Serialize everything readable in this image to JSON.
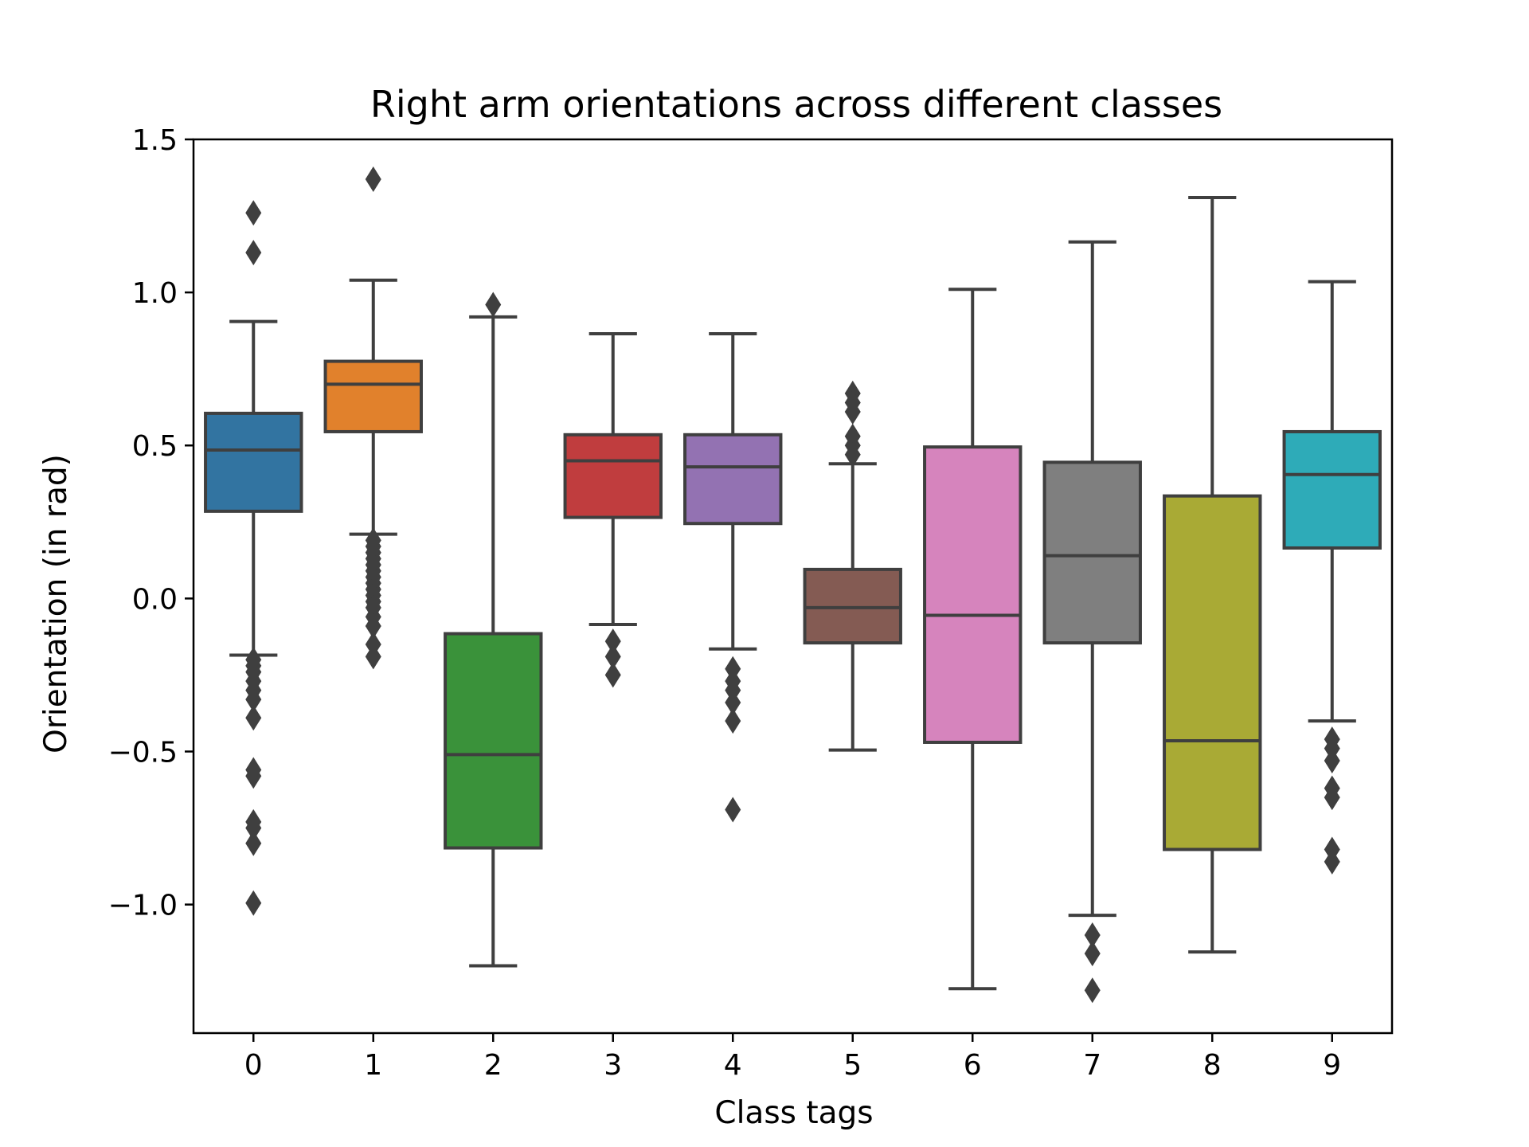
{
  "chart_data": {
    "type": "box",
    "title": "Right arm orientations across different classes",
    "xlabel": "Class tags",
    "ylabel": "Orientation (in rad)",
    "ylim": [
      -1.42,
      1.5
    ],
    "yticks": [
      1.5,
      1.0,
      0.5,
      0.0,
      -0.5,
      -1.0
    ],
    "ytick_labels": [
      "1.5",
      "1.0",
      "0.5",
      "0.0",
      "−0.5",
      "−1.0"
    ],
    "grid": false,
    "legend": "none",
    "categories": [
      "0",
      "1",
      "2",
      "3",
      "4",
      "5",
      "6",
      "7",
      "8",
      "9"
    ],
    "boxes": [
      {
        "category": "0",
        "color": "#3274a1",
        "whisker_low": -0.185,
        "q1": 0.285,
        "median": 0.485,
        "q3": 0.605,
        "whisker_high": 0.905,
        "outliers": [
          1.26,
          1.13,
          -0.2,
          -0.22,
          -0.24,
          -0.27,
          -0.3,
          -0.33,
          -0.39,
          -0.56,
          -0.58,
          -0.73,
          -0.75,
          -0.8,
          -0.995
        ]
      },
      {
        "category": "1",
        "color": "#e1812c",
        "whisker_low": 0.21,
        "q1": 0.545,
        "median": 0.7,
        "q3": 0.775,
        "whisker_high": 1.04,
        "outliers": [
          1.37,
          0.19,
          0.17,
          0.15,
          0.13,
          0.11,
          0.09,
          0.07,
          0.05,
          0.03,
          0.01,
          -0.01,
          -0.03,
          -0.06,
          -0.09,
          -0.15,
          -0.19
        ]
      },
      {
        "category": "2",
        "color": "#3a923a",
        "whisker_low": -1.2,
        "q1": -0.815,
        "median": -0.51,
        "q3": -0.115,
        "whisker_high": 0.92,
        "outliers": [
          0.96
        ]
      },
      {
        "category": "3",
        "color": "#c03d3e",
        "whisker_low": -0.085,
        "q1": 0.265,
        "median": 0.45,
        "q3": 0.535,
        "whisker_high": 0.865,
        "outliers": [
          -0.14,
          -0.19,
          -0.25
        ]
      },
      {
        "category": "4",
        "color": "#9372b2",
        "whisker_low": -0.165,
        "q1": 0.245,
        "median": 0.43,
        "q3": 0.535,
        "whisker_high": 0.865,
        "outliers": [
          -0.23,
          -0.27,
          -0.3,
          -0.34,
          -0.4,
          -0.69
        ]
      },
      {
        "category": "5",
        "color": "#845b53",
        "whisker_low": -0.495,
        "q1": -0.145,
        "median": -0.03,
        "q3": 0.095,
        "whisker_high": 0.44,
        "outliers": [
          0.67,
          0.64,
          0.61,
          0.53,
          0.5,
          0.47
        ]
      },
      {
        "category": "6",
        "color": "#d684bd",
        "whisker_low": -1.275,
        "q1": -0.47,
        "median": -0.055,
        "q3": 0.495,
        "whisker_high": 1.01,
        "outliers": []
      },
      {
        "category": "7",
        "color": "#7f7f7f",
        "whisker_low": -1.035,
        "q1": -0.145,
        "median": 0.14,
        "q3": 0.445,
        "whisker_high": 1.165,
        "outliers": [
          -1.1,
          -1.16,
          -1.28
        ]
      },
      {
        "category": "8",
        "color": "#a9aa35",
        "whisker_low": -1.155,
        "q1": -0.82,
        "median": -0.465,
        "q3": 0.335,
        "whisker_high": 1.31,
        "outliers": []
      },
      {
        "category": "9",
        "color": "#2eabb8",
        "whisker_low": -0.4,
        "q1": 0.165,
        "median": 0.405,
        "q3": 0.545,
        "whisker_high": 1.035,
        "outliers": [
          -0.46,
          -0.49,
          -0.53,
          -0.62,
          -0.65,
          -0.82,
          -0.86
        ]
      }
    ]
  }
}
